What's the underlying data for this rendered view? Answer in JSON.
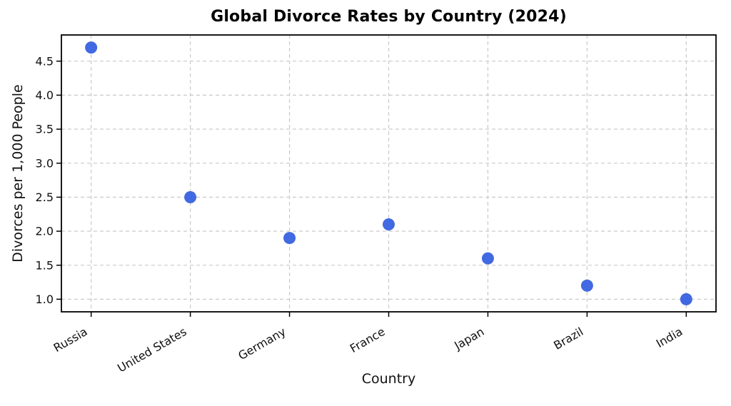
{
  "figure": {
    "background": "#ffffff"
  },
  "chart_data": {
    "type": "scatter",
    "title": "Global Divorce Rates by Country (2024)",
    "xlabel": "Country",
    "ylabel": "Divorces per 1,000 People",
    "categories": [
      "Russia",
      "United States",
      "Germany",
      "France",
      "Japan",
      "Brazil",
      "India"
    ],
    "values": [
      4.7,
      2.5,
      1.9,
      2.1,
      1.6,
      1.2,
      1.0
    ],
    "ytick_labels": [
      "1.0",
      "1.5",
      "2.0",
      "2.5",
      "3.0",
      "3.5",
      "4.0",
      "4.5"
    ],
    "ylim": [
      0.815,
      4.885
    ],
    "x_margin_units": 0.3,
    "grid": true,
    "legend_position": "none",
    "x_tick_rotation_deg": 30,
    "colors": {
      "marker": "#4169E1",
      "grid": "#c9c9c9",
      "axis": "#000000",
      "text": "#111111",
      "background": "#ffffff"
    },
    "marker_radius_px": 8.5
  }
}
